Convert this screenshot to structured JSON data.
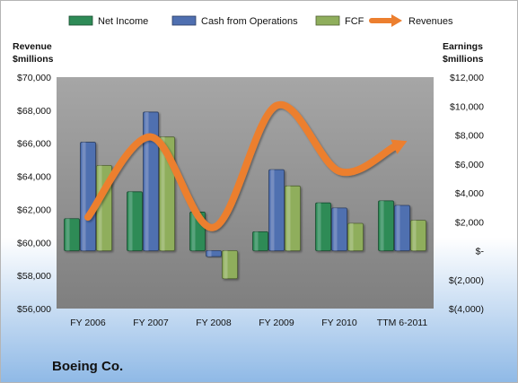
{
  "chart_data": {
    "type": "bar",
    "company": "Boeing Co.",
    "categories": [
      "FY 2006",
      "FY 2007",
      "FY 2008",
      "FY 2009",
      "FY 2010",
      "TTM 6-2011"
    ],
    "series": [
      {
        "name": "Net Income",
        "axis": "right",
        "color": "#2e8b57",
        "values": [
          2215,
          4074,
          2672,
          1312,
          3307,
          3450
        ]
      },
      {
        "name": "Cash from Operations",
        "axis": "right",
        "color": "#4f6fb0",
        "values": [
          7499,
          9584,
          -401,
          5603,
          2952,
          3130
        ]
      },
      {
        "name": "FCF",
        "axis": "right",
        "color": "#8fae5c",
        "values": [
          5890,
          7865,
          -1930,
          4477,
          1890,
          2100
        ]
      },
      {
        "name": "Revenues",
        "type": "line",
        "axis": "left",
        "color": "#ec7f2f",
        "values": [
          61530,
          66387,
          60909,
          68281,
          64306,
          66000
        ]
      }
    ],
    "left_axis": {
      "title": [
        "Revenue",
        "$millions"
      ],
      "ylim": [
        56000,
        70000
      ],
      "tick_values": [
        56000,
        58000,
        60000,
        62000,
        64000,
        66000,
        68000,
        70000
      ],
      "tick_labels": [
        "$56,000",
        "$58,000",
        "$60,000",
        "$62,000",
        "$64,000",
        "$66,000",
        "$68,000",
        "$70,000"
      ]
    },
    "right_axis": {
      "title": [
        "Earnings",
        "$millions"
      ],
      "ylim": [
        -4000,
        12000
      ],
      "tick_values": [
        -4000,
        -2000,
        0,
        2000,
        4000,
        6000,
        8000,
        10000,
        12000
      ],
      "tick_labels": [
        "$(4,000)",
        "$(2,000)",
        "$-",
        "$2,000",
        "$4,000",
        "$6,000",
        "$8,000",
        "$10,000",
        "$12,000"
      ]
    },
    "legend_position": "top",
    "grid": false,
    "colors": {
      "plot_area": "#8f8f8f",
      "background_bottom": "#9cc3eb"
    }
  }
}
